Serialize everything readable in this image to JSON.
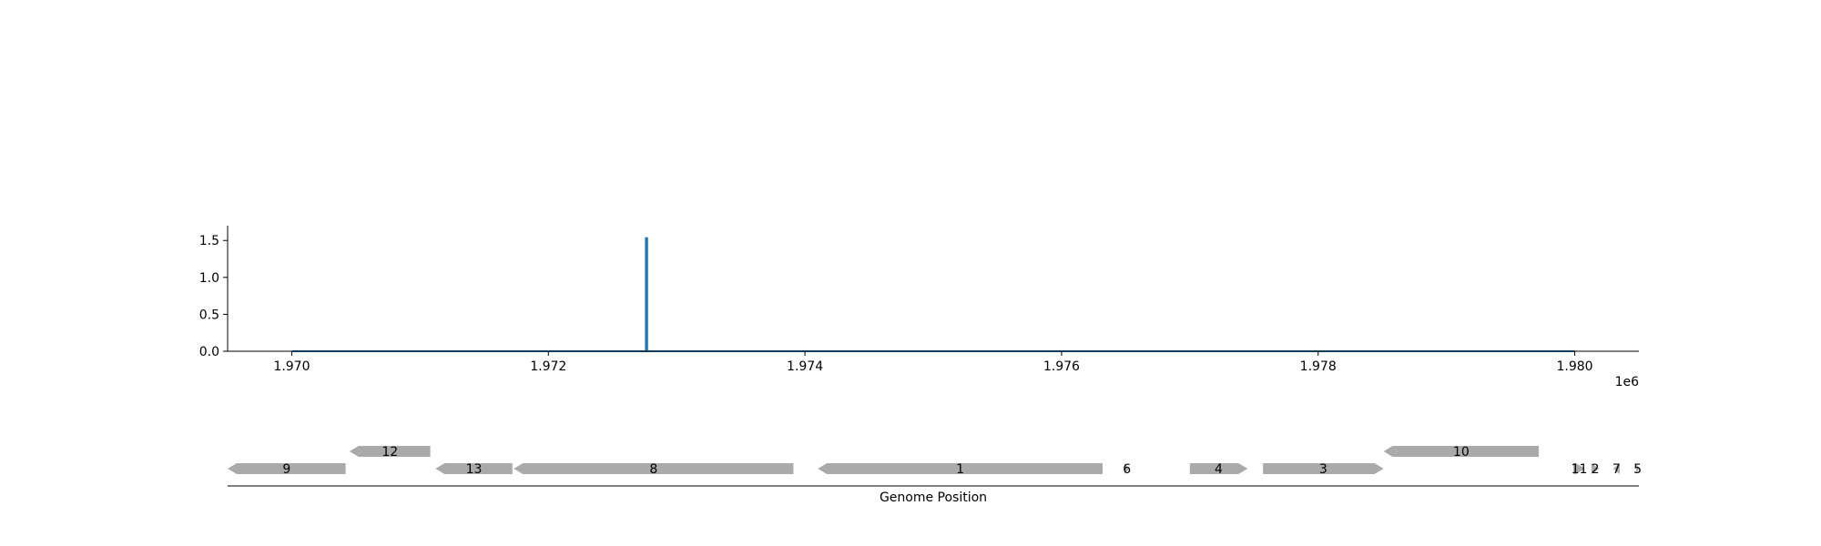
{
  "chart_data": [
    {
      "type": "line",
      "title": "",
      "xlabel": "",
      "ylabel": "",
      "x_offset_label": "1e6",
      "xlim": [
        1969500,
        1980500
      ],
      "ylim": [
        0,
        1.7
      ],
      "x_ticks": [
        1970000,
        1972000,
        1974000,
        1976000,
        1978000,
        1980000
      ],
      "x_tick_labels": [
        "1.970",
        "1.972",
        "1.974",
        "1.976",
        "1.978",
        "1.980"
      ],
      "y_ticks": [
        0,
        0.5,
        1.0,
        1.5
      ],
      "y_tick_labels": [
        "0.0",
        "0.5",
        "1.0",
        "1.5"
      ],
      "grid": false,
      "color": "#1f77b4",
      "series": [
        {
          "x": [
            1970000,
            1972760,
            1972760,
            1972770,
            1972770,
            1980000
          ],
          "y": [
            0,
            0,
            1.53,
            1.53,
            0,
            0
          ]
        }
      ]
    },
    {
      "type": "gene_track",
      "xlabel": "Genome Position",
      "xlim": [
        1969500,
        1980500
      ],
      "color": "#aaaaaa",
      "genes": [
        {
          "label": "9",
          "start": 1969500,
          "end": 1970420,
          "strand": -1,
          "row": 0
        },
        {
          "label": "12",
          "start": 1970450,
          "end": 1971080,
          "strand": -1,
          "row": 1
        },
        {
          "label": "13",
          "start": 1971120,
          "end": 1971720,
          "strand": -1,
          "row": 0
        },
        {
          "label": "8",
          "start": 1971730,
          "end": 1973910,
          "strand": -1,
          "row": 0
        },
        {
          "label": "1",
          "start": 1974100,
          "end": 1976320,
          "strand": -1,
          "row": 0
        },
        {
          "label": "6",
          "start": 1976490,
          "end": 1976530,
          "strand": 1,
          "row": 0
        },
        {
          "label": "4",
          "start": 1977000,
          "end": 1977450,
          "strand": 1,
          "row": 0
        },
        {
          "label": "3",
          "start": 1977570,
          "end": 1978510,
          "strand": 1,
          "row": 0
        },
        {
          "label": "10",
          "start": 1978510,
          "end": 1979720,
          "strand": -1,
          "row": 1
        },
        {
          "label": "11",
          "start": 1979990,
          "end": 1980080,
          "strand": 1,
          "row": 0
        },
        {
          "label": "2",
          "start": 1980130,
          "end": 1980190,
          "strand": 1,
          "row": 0
        },
        {
          "label": "7",
          "start": 1980300,
          "end": 1980350,
          "strand": -1,
          "row": 0
        },
        {
          "label": "5",
          "start": 1980480,
          "end": 1980500,
          "strand": 1,
          "row": 0
        }
      ]
    }
  ]
}
